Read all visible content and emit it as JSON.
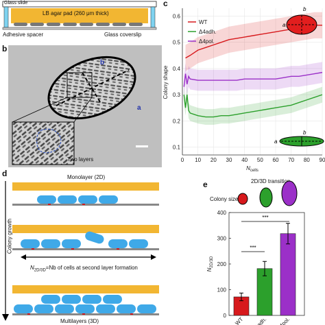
{
  "panel_a": {
    "label": "a",
    "glass_slide": "Glass slide",
    "agar_pad": "LB agar pad (260 μm thick)",
    "spacer": "Adhesive spacer",
    "coverslip": "Glass coverslip"
  },
  "panel_b": {
    "label": "b",
    "axis_a": "a",
    "axis_b": "b",
    "inset_note": "Two layers"
  },
  "panel_c": {
    "label": "c",
    "inset_top": {
      "a": "a",
      "b": "b"
    },
    "inset_bottom": {
      "a": "a",
      "b": "b"
    }
  },
  "panel_d": {
    "label": "d",
    "monolayer": "Monolayer (2D)",
    "n_label_main": "N",
    "n_label_sub": "2D/3D",
    "n_label_rest": "=Nb of cells at second layer formation",
    "multilayer": "Multilayers (3D)",
    "growth": "Colony growth"
  },
  "panel_e": {
    "label": "e",
    "transition": "2D/3D transition",
    "colony_size": "Colony size",
    "sig1": "***",
    "sig2": "***"
  },
  "colors": {
    "wt": "#d7191c",
    "adh": "#2ca02c",
    "pol": "#9b30c8",
    "agar": "#f2b632",
    "cell": "#3fa9e8",
    "glass_edge": "#7fd3f0"
  },
  "chart_data": [
    {
      "type": "line",
      "title": "",
      "xlabel": "N_cells",
      "ylabel": "Colony shape",
      "xlim": [
        0,
        90
      ],
      "ylim": [
        0.07,
        0.63
      ],
      "xticks": [
        0,
        10,
        20,
        30,
        40,
        50,
        60,
        70,
        80,
        90
      ],
      "yticks": [
        0.1,
        0.2,
        0.3,
        0.4,
        0.5,
        0.6
      ],
      "legend_position": "top-left",
      "series": [
        {
          "name": "WT",
          "color": "#d7191c",
          "band": 0.05,
          "x": [
            2,
            5,
            10,
            15,
            20,
            25,
            30,
            35,
            40,
            45,
            50,
            55,
            60,
            65,
            70,
            75,
            80,
            85,
            90
          ],
          "y": [
            0.44,
            0.45,
            0.47,
            0.48,
            0.49,
            0.5,
            0.51,
            0.515,
            0.52,
            0.525,
            0.53,
            0.535,
            0.54,
            0.545,
            0.55,
            0.555,
            0.56,
            0.565,
            0.565
          ]
        },
        {
          "name": "Δ4adh.",
          "color": "#2ca02c",
          "band": 0.03,
          "x": [
            1,
            2,
            3,
            4,
            5,
            10,
            15,
            20,
            25,
            30,
            35,
            40,
            45,
            50,
            55,
            60,
            65,
            70,
            75,
            80,
            85,
            90
          ],
          "y": [
            0.3,
            0.25,
            0.3,
            0.24,
            0.23,
            0.22,
            0.215,
            0.215,
            0.22,
            0.22,
            0.225,
            0.23,
            0.235,
            0.24,
            0.245,
            0.25,
            0.255,
            0.26,
            0.27,
            0.28,
            0.29,
            0.3
          ]
        },
        {
          "name": "Δ4pol.",
          "color": "#9b30c8",
          "band": 0.04,
          "x": [
            1,
            2,
            3,
            4,
            5,
            10,
            15,
            20,
            25,
            30,
            35,
            40,
            45,
            50,
            55,
            60,
            65,
            70,
            75,
            80,
            85,
            90
          ],
          "y": [
            0.33,
            0.38,
            0.34,
            0.37,
            0.36,
            0.355,
            0.355,
            0.355,
            0.355,
            0.355,
            0.355,
            0.36,
            0.36,
            0.36,
            0.36,
            0.36,
            0.365,
            0.37,
            0.37,
            0.375,
            0.38,
            0.385
          ]
        }
      ]
    },
    {
      "type": "bar",
      "title": "",
      "xlabel": "",
      "ylabel": "N_2D/3D",
      "ylim": [
        0,
        400
      ],
      "yticks": [
        0,
        100,
        200,
        300,
        400
      ],
      "categories": [
        "WT",
        "Δ4adh.",
        "Δ4pol."
      ],
      "values": [
        72,
        182,
        318
      ],
      "errors": [
        15,
        28,
        40
      ],
      "colors": [
        "#d7191c",
        "#2ca02c",
        "#9b30c8"
      ]
    }
  ]
}
